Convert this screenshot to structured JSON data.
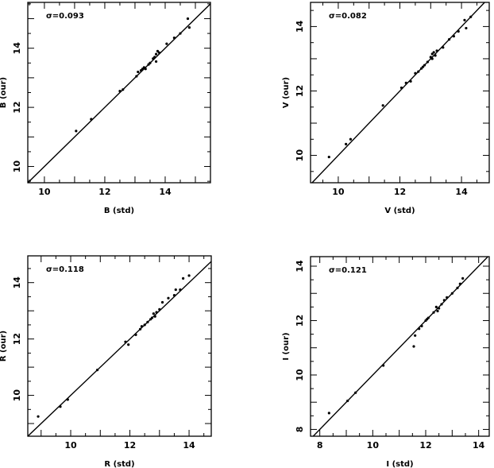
{
  "chart_data": [
    {
      "type": "scatter",
      "xlabel": "B (std)",
      "ylabel": "B (our)",
      "annotation": "σ=0.093",
      "xlim": [
        9.45,
        15.5
      ],
      "ylim": [
        9.45,
        15.55
      ],
      "xticks": [
        10,
        12,
        14
      ],
      "yticks": [
        10,
        12,
        14
      ],
      "reference_line": "y = x",
      "points": [
        [
          11.05,
          11.2
        ],
        [
          11.55,
          11.6
        ],
        [
          12.5,
          12.55
        ],
        [
          12.6,
          12.6
        ],
        [
          13.05,
          13.05
        ],
        [
          13.1,
          13.2
        ],
        [
          13.2,
          13.25
        ],
        [
          13.25,
          13.3
        ],
        [
          13.3,
          13.35
        ],
        [
          13.35,
          13.3
        ],
        [
          13.45,
          13.45
        ],
        [
          13.5,
          13.5
        ],
        [
          13.6,
          13.65
        ],
        [
          13.65,
          13.7
        ],
        [
          13.7,
          13.8
        ],
        [
          13.75,
          13.9
        ],
        [
          13.8,
          13.85
        ],
        [
          13.7,
          13.55
        ],
        [
          14.05,
          14.15
        ],
        [
          14.3,
          14.35
        ],
        [
          14.5,
          14.5
        ],
        [
          14.75,
          15.0
        ],
        [
          14.8,
          14.7
        ]
      ]
    },
    {
      "type": "scatter",
      "xlabel": "V (std)",
      "ylabel": "V (our)",
      "annotation": "σ=0.082",
      "xlim": [
        9.1,
        14.9
      ],
      "ylim": [
        9.15,
        14.75
      ],
      "xticks": [
        10,
        12,
        14
      ],
      "yticks": [
        10,
        12,
        14
      ],
      "reference_line": "y = x",
      "points": [
        [
          9.7,
          9.95
        ],
        [
          10.25,
          10.35
        ],
        [
          10.4,
          10.5
        ],
        [
          11.45,
          11.55
        ],
        [
          12.05,
          12.1
        ],
        [
          12.2,
          12.25
        ],
        [
          12.35,
          12.3
        ],
        [
          12.5,
          12.55
        ],
        [
          12.6,
          12.6
        ],
        [
          12.7,
          12.7
        ],
        [
          12.75,
          12.75
        ],
        [
          12.8,
          12.8
        ],
        [
          12.9,
          12.9
        ],
        [
          13.0,
          13.05
        ],
        [
          13.05,
          13.15
        ],
        [
          13.1,
          13.2
        ],
        [
          13.15,
          13.1
        ],
        [
          13.05,
          13.0
        ],
        [
          13.2,
          13.25
        ],
        [
          13.4,
          13.35
        ],
        [
          13.6,
          13.6
        ],
        [
          13.75,
          13.7
        ],
        [
          13.9,
          13.85
        ],
        [
          14.1,
          14.2
        ],
        [
          14.15,
          13.95
        ],
        [
          14.3,
          14.3
        ]
      ]
    },
    {
      "type": "scatter",
      "xlabel": "R (std)",
      "ylabel": "R (our)",
      "annotation": "σ=0.118",
      "xlim": [
        8.55,
        14.75
      ],
      "ylim": [
        8.55,
        14.95
      ],
      "xticks": [
        10,
        12,
        14
      ],
      "yticks": [
        10,
        12,
        14
      ],
      "reference_line": "y = x",
      "points": [
        [
          8.9,
          9.25
        ],
        [
          9.65,
          9.6
        ],
        [
          9.9,
          9.85
        ],
        [
          10.9,
          10.9
        ],
        [
          11.85,
          11.9
        ],
        [
          11.95,
          11.8
        ],
        [
          12.2,
          12.15
        ],
        [
          12.35,
          12.35
        ],
        [
          12.4,
          12.45
        ],
        [
          12.5,
          12.5
        ],
        [
          12.6,
          12.6
        ],
        [
          12.7,
          12.7
        ],
        [
          12.75,
          12.75
        ],
        [
          12.8,
          12.9
        ],
        [
          12.85,
          12.8
        ],
        [
          12.9,
          12.95
        ],
        [
          13.0,
          13.05
        ],
        [
          13.1,
          13.3
        ],
        [
          13.3,
          13.45
        ],
        [
          13.5,
          13.55
        ],
        [
          13.55,
          13.75
        ],
        [
          13.7,
          13.75
        ],
        [
          13.8,
          14.15
        ],
        [
          14.0,
          14.25
        ]
      ]
    },
    {
      "type": "scatter",
      "xlabel": "I (std)",
      "ylabel": "I (our)",
      "annotation": "σ=0.121",
      "xlim": [
        7.65,
        14.4
      ],
      "ylim": [
        7.75,
        14.35
      ],
      "xticks": [
        8,
        10,
        12,
        14
      ],
      "yticks": [
        8,
        10,
        12,
        14
      ],
      "reference_line": "y = x",
      "points": [
        [
          8.35,
          8.6
        ],
        [
          9.05,
          9.05
        ],
        [
          9.35,
          9.35
        ],
        [
          10.4,
          10.35
        ],
        [
          11.55,
          11.05
        ],
        [
          11.6,
          11.45
        ],
        [
          11.75,
          11.7
        ],
        [
          11.85,
          11.8
        ],
        [
          12.0,
          12.0
        ],
        [
          12.05,
          12.05
        ],
        [
          12.1,
          12.1
        ],
        [
          12.3,
          12.3
        ],
        [
          12.4,
          12.5
        ],
        [
          12.45,
          12.35
        ],
        [
          12.5,
          12.45
        ],
        [
          12.6,
          12.6
        ],
        [
          12.7,
          12.75
        ],
        [
          12.8,
          12.85
        ],
        [
          13.0,
          13.0
        ],
        [
          13.2,
          13.2
        ],
        [
          13.3,
          13.35
        ],
        [
          13.4,
          13.55
        ]
      ]
    }
  ]
}
